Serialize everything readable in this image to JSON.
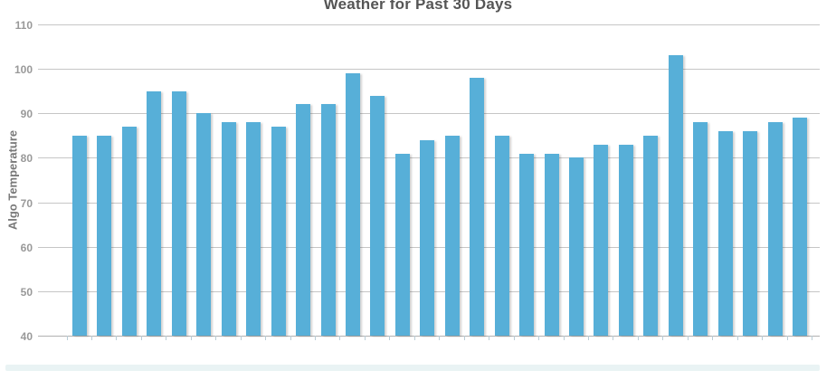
{
  "chart_data": {
    "type": "bar",
    "title": "Weather for Past 30 Days",
    "xlabel": "",
    "ylabel": "Algo Temperature",
    "values": [
      85,
      85,
      87,
      95,
      95,
      90,
      88,
      88,
      87,
      92,
      92,
      99,
      94,
      81,
      84,
      85,
      98,
      85,
      81,
      81,
      80,
      83,
      83,
      85,
      103,
      88,
      86,
      86,
      88,
      89
    ],
    "num_bars": 30,
    "ylim": [
      40,
      110
    ],
    "yticks": [
      40,
      50,
      60,
      70,
      80,
      90,
      100,
      110
    ],
    "x_tick_labels": "none",
    "grid": true,
    "legend_position": "none",
    "bar_color": "#57AFD8",
    "gridline_color": "#c6c6c6",
    "title_color": "#555555",
    "axis_label_color": "#999999"
  },
  "footer": {
    "strip_color": "#e9f3f4"
  }
}
